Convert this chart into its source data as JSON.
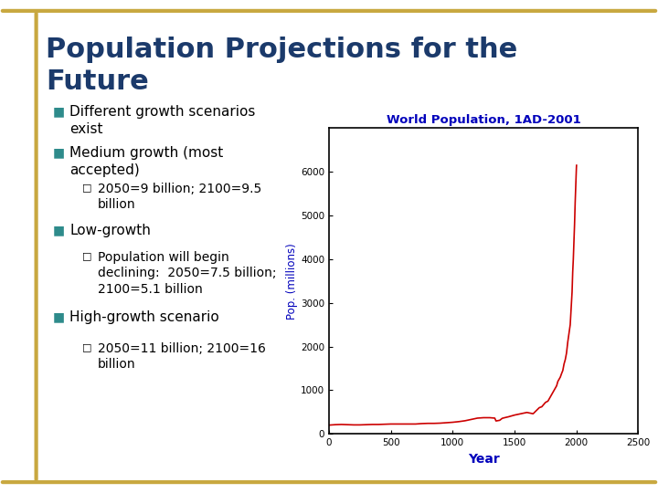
{
  "title_line1": "Population Projections for the",
  "title_line2": "Future",
  "title_color": "#1B3A6B",
  "background_color": "#FFFFFF",
  "border_color": "#C8A840",
  "bullet_color": "#2E8B8B",
  "text_color": "#000000",
  "bullet_items": [
    {
      "level": 0,
      "text": "Different growth scenarios\nexist"
    },
    {
      "level": 0,
      "text": "Medium growth (most\naccepted)"
    },
    {
      "level": 1,
      "text": "2050=9 billion; 2100=9.5\nbillion"
    },
    {
      "level": 0,
      "text": "Low-growth"
    },
    {
      "level": 1,
      "text": "Population will begin\ndeclining:  2050=7.5 billion;\n2100=5.1 billion"
    },
    {
      "level": 0,
      "text": "High-growth scenario"
    },
    {
      "level": 1,
      "text": "2050=11 billion; 2100=16\nbillion"
    }
  ],
  "chart_title": "World Population, 1AD-2001",
  "chart_title_color": "#0000BB",
  "chart_xlabel": "Year",
  "chart_ylabel": "Pop. (millions)",
  "chart_xlabel_color": "#0000BB",
  "chart_ylabel_color": "#0000BB",
  "chart_xlim": [
    0,
    2500
  ],
  "chart_ylim": [
    0,
    7000
  ],
  "chart_xticks": [
    0,
    500,
    1000,
    1500,
    2000,
    2500
  ],
  "chart_yticks": [
    0,
    1000,
    2000,
    3000,
    4000,
    5000,
    6000
  ],
  "line_color": "#CC0000",
  "pop_data_years": [
    1,
    50,
    100,
    150,
    200,
    250,
    300,
    350,
    400,
    450,
    500,
    550,
    600,
    650,
    700,
    750,
    800,
    850,
    900,
    950,
    1000,
    1050,
    1100,
    1150,
    1200,
    1250,
    1300,
    1340,
    1350,
    1360,
    1380,
    1400,
    1420,
    1450,
    1500,
    1550,
    1600,
    1650,
    1700,
    1720,
    1750,
    1770,
    1800,
    1820,
    1830,
    1840,
    1850,
    1860,
    1870,
    1880,
    1890,
    1900,
    1910,
    1920,
    1930,
    1940,
    1950,
    1955,
    1960,
    1965,
    1970,
    1975,
    1980,
    1985,
    1990,
    1995,
    2000,
    2001
  ],
  "pop_data_values": [
    200,
    210,
    215,
    210,
    205,
    205,
    210,
    215,
    215,
    220,
    225,
    225,
    225,
    225,
    225,
    235,
    240,
    240,
    245,
    255,
    265,
    280,
    300,
    330,
    360,
    370,
    370,
    360,
    295,
    300,
    310,
    355,
    370,
    390,
    430,
    460,
    490,
    460,
    600,
    620,
    720,
    750,
    900,
    1000,
    1050,
    1100,
    1200,
    1250,
    1300,
    1380,
    1450,
    1600,
    1700,
    1850,
    2100,
    2300,
    2500,
    2750,
    3000,
    3250,
    3700,
    4000,
    4400,
    4800,
    5300,
    5700,
    6100,
    6150
  ]
}
